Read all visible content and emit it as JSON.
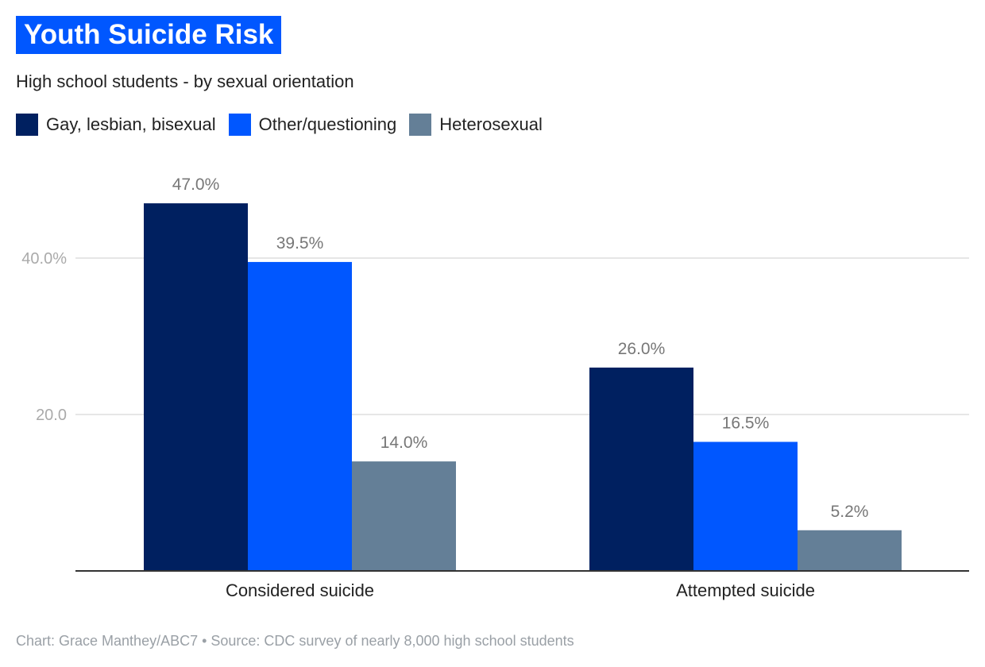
{
  "header": {
    "title": "Youth Suicide Risk",
    "subtitle": "High school students - by sexual orientation"
  },
  "footer": {
    "text": "Chart: Grace Manthey/ABC7 • Source: CDC survey of nearly 8,000 high school students"
  },
  "chart_data": {
    "type": "bar",
    "title": "Youth Suicide Risk",
    "subtitle": "High school students - by sexual orientation",
    "categories": [
      "Considered suicide",
      "Attempted suicide"
    ],
    "series": [
      {
        "name": "Gay, lesbian, bisexual",
        "color": "#002060",
        "values": [
          47.0,
          26.0
        ],
        "labels": [
          "47.0%",
          "26.0%"
        ]
      },
      {
        "name": "Other/questioning",
        "color": "#0057ff",
        "values": [
          39.5,
          16.5
        ],
        "labels": [
          "39.5%",
          "16.5%"
        ]
      },
      {
        "name": "Heterosexual",
        "color": "#647f97",
        "values": [
          14.0,
          5.2
        ],
        "labels": [
          "14.0%",
          "5.2%"
        ]
      }
    ],
    "yticks": [
      {
        "value": 20,
        "label": "20.0"
      },
      {
        "value": 40,
        "label": "40.0%"
      }
    ],
    "ylim": [
      0,
      50
    ],
    "xlabel": "",
    "ylabel": "",
    "grid": true,
    "legend": "top-left"
  }
}
